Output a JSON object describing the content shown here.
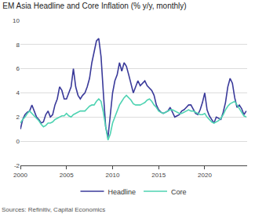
{
  "chart_data": {
    "type": "line",
    "title": "EM Asia Headline and Core Inflation (% y/y, monthly)",
    "source": "Sources: Refinitiv, Capital Economics",
    "x": [
      2000,
      2000.25,
      2000.5,
      2000.75,
      2001,
      2001.25,
      2001.5,
      2001.75,
      2002,
      2002.25,
      2002.5,
      2002.75,
      2003,
      2003.25,
      2003.5,
      2003.75,
      2004,
      2004.25,
      2004.5,
      2004.75,
      2005,
      2005.25,
      2005.5,
      2005.75,
      2006,
      2006.25,
      2006.5,
      2006.75,
      2007,
      2007.25,
      2007.5,
      2007.75,
      2008,
      2008.25,
      2008.5,
      2008.75,
      2009,
      2009.25,
      2009.5,
      2009.75,
      2010,
      2010.25,
      2010.5,
      2010.75,
      2011,
      2011.25,
      2011.5,
      2011.75,
      2012,
      2012.25,
      2012.5,
      2012.75,
      2013,
      2013.25,
      2013.5,
      2013.75,
      2014,
      2014.25,
      2014.5,
      2014.75,
      2015,
      2015.25,
      2015.5,
      2015.75,
      2016,
      2016.25,
      2016.5,
      2016.75,
      2017,
      2017.25,
      2017.5,
      2017.75,
      2018,
      2018.25,
      2018.5,
      2018.75,
      2019,
      2019.25,
      2019.5,
      2019.75,
      2020,
      2020.25,
      2020.5,
      2020.75,
      2021,
      2021.25,
      2021.5,
      2021.75,
      2022,
      2022.25,
      2022.5,
      2022.75,
      2023,
      2023.25,
      2023.5,
      2023.75,
      2024,
      2024.25,
      2024.5
    ],
    "series": [
      {
        "name": "Headline",
        "color": "#3a3a9a",
        "values": [
          1.0,
          1.8,
          2.2,
          2.4,
          2.5,
          3.0,
          2.5,
          2.0,
          1.8,
          1.5,
          1.6,
          2.2,
          2.5,
          2.0,
          2.2,
          3.0,
          3.5,
          4.5,
          4.2,
          3.5,
          3.5,
          4.0,
          4.5,
          6.0,
          4.5,
          3.8,
          3.5,
          3.8,
          4.0,
          4.5,
          5.2,
          6.5,
          7.5,
          8.3,
          8.5,
          7.0,
          4.0,
          1.2,
          0.3,
          2.0,
          4.0,
          5.0,
          5.5,
          6.5,
          5.8,
          6.5,
          6.2,
          5.5,
          4.8,
          4.0,
          4.5,
          5.0,
          4.6,
          4.8,
          5.0,
          4.6,
          4.4,
          4.2,
          3.8,
          3.0,
          2.6,
          2.4,
          2.3,
          2.4,
          2.5,
          2.8,
          2.4,
          2.0,
          2.1,
          2.2,
          2.5,
          2.6,
          2.8,
          3.0,
          3.0,
          2.6,
          2.3,
          2.2,
          2.6,
          3.2,
          4.0,
          2.6,
          2.1,
          1.8,
          1.5,
          2.0,
          1.9,
          1.8,
          2.4,
          3.2,
          4.5,
          5.2,
          4.8,
          3.6,
          2.8,
          3.0,
          2.7,
          2.2,
          2.5
        ]
      },
      {
        "name": "Core",
        "color": "#4fd3b2",
        "values": [
          1.5,
          1.8,
          2.0,
          2.3,
          2.5,
          2.3,
          2.1,
          1.9,
          1.7,
          1.4,
          1.2,
          1.3,
          1.5,
          1.5,
          1.6,
          1.8,
          1.9,
          2.0,
          2.1,
          2.1,
          2.3,
          2.1,
          2.0,
          2.2,
          2.3,
          2.4,
          2.5,
          2.5,
          2.5,
          2.7,
          2.9,
          3.0,
          3.0,
          3.3,
          3.5,
          3.3,
          2.4,
          1.2,
          0.1,
          0.6,
          1.5,
          2.0,
          2.5,
          3.0,
          3.3,
          3.6,
          3.8,
          3.6,
          3.4,
          3.1,
          3.0,
          3.0,
          3.0,
          3.1,
          3.2,
          3.4,
          3.5,
          3.3,
          3.0,
          2.8,
          2.5,
          2.4,
          2.3,
          2.4,
          2.5,
          2.6,
          2.6,
          2.5,
          2.4,
          2.3,
          2.3,
          2.4,
          2.5,
          2.6,
          2.5,
          2.5,
          2.4,
          2.3,
          2.2,
          2.2,
          2.3,
          2.0,
          1.8,
          1.6,
          1.5,
          1.6,
          1.7,
          1.9,
          2.2,
          2.6,
          2.9,
          3.1,
          3.2,
          3.3,
          3.0,
          2.7,
          2.4,
          2.1,
          2.0
        ]
      }
    ],
    "xlim": [
      2000,
      2024.6
    ],
    "xticks": [
      2000,
      2005,
      2010,
      2015,
      2020
    ],
    "ylim": [
      -2,
      10
    ],
    "yticks": [
      -2,
      0,
      2,
      4,
      6,
      8,
      10
    ],
    "grid": true,
    "legend": "bottom"
  }
}
